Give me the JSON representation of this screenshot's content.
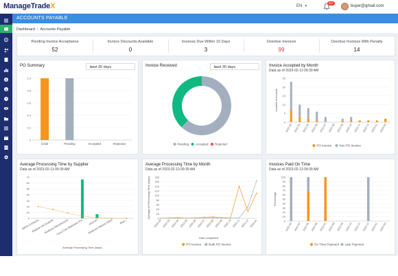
{
  "header": {
    "logo_main": "ManageTrade",
    "logo_x": "X",
    "language": "EN",
    "notifications_badge": "99+",
    "user_email": "buyer@gmail.com"
  },
  "page": {
    "title": "ACCOUNTS PAYABLE",
    "breadcrumb": [
      "Dashboard",
      "Accounts Payable"
    ]
  },
  "kpis": [
    {
      "label": "Pending Invoice Acceptance",
      "value": "52"
    },
    {
      "label": "Invoice Discounts Available",
      "value": "0"
    },
    {
      "label": "Invoices Due Within 10 Days",
      "value": "3"
    },
    {
      "label": "Overdue Invoices",
      "value": "99"
    },
    {
      "label": "Overdue Invoices With Penalty",
      "value": "14"
    }
  ],
  "colors": {
    "orange": "#f7941d",
    "gray": "#a3afbf",
    "green": "#10b981",
    "red": "#ef4444",
    "accent": "#3b8de0",
    "sidebar": "#1d2e70"
  },
  "cards": {
    "po_summary": {
      "title": "PO Summary",
      "dropdown": "Last 30 days"
    },
    "invoice_received": {
      "title": "Invoice Received",
      "dropdown": "Last 30 days"
    },
    "invoice_accepted": {
      "title": "Invoice Accepted by Month",
      "subtitle": "Data as of 2023-02-13 09:39 AM"
    },
    "avg_supplier": {
      "title": "Average Processing Time by Supplier",
      "subtitle": "Data as of 2023-02-13 09:39 AM"
    },
    "avg_month": {
      "title": "Average Processing Time by Month",
      "subtitle": "Data as of 2023-02-13 09:39 AM"
    },
    "paid_on_time": {
      "title": "Invoices Paid On Time",
      "subtitle": "Data as of 2023-02-13 09:39 AM"
    }
  },
  "chart_data": [
    {
      "id": "po_summary",
      "type": "bar",
      "categories": [
        "Draft",
        "Pending",
        "Accepted",
        "Rejected"
      ],
      "values": [
        1.0,
        1.0,
        0,
        0
      ],
      "colors": [
        "#f7941d",
        "#a3afbf",
        "#a3afbf",
        "#a3afbf"
      ],
      "ylim": [
        0,
        1.0
      ],
      "yticks": [
        "0",
        "0.2",
        "0.4",
        "0.6",
        "0.8",
        "1.0"
      ],
      "grid": true
    },
    {
      "id": "invoice_received",
      "type": "pie",
      "donut": true,
      "series": [
        {
          "name": "Pending",
          "value": 62,
          "color": "#a3afbf"
        },
        {
          "name": "Accepted",
          "value": 38,
          "color": "#10b981"
        },
        {
          "name": "Rejected",
          "value": 0,
          "color": "#ef4444"
        }
      ],
      "legend_placement": "bottom"
    },
    {
      "id": "invoice_accepted",
      "type": "bar",
      "stacked": true,
      "ylabel": "Number of records",
      "ylim": [
        0,
        25
      ],
      "yticks": [
        "0",
        "5",
        "10",
        "15",
        "20",
        "25"
      ],
      "categories": [
        "2022-03",
        "2022-04",
        "2022-05",
        "2022-06",
        "2022-07",
        "2022-08",
        "2022-09",
        "2022-10",
        "2022-11",
        "2022-12",
        "2023-01",
        "2023-02"
      ],
      "series": [
        {
          "name": "PO Invoice",
          "color": "#f7941d",
          "values": [
            7,
            3,
            2,
            1,
            0,
            0,
            1,
            1,
            1,
            1,
            1,
            2
          ]
        },
        {
          "name": "Non PO Invoice",
          "color": "#a3afbf",
          "values": [
            16,
            7,
            6,
            5,
            3,
            0,
            1,
            2,
            0,
            0,
            0,
            0
          ]
        }
      ],
      "legend_placement": "bottom"
    },
    {
      "id": "avg_supplier",
      "type": "bar",
      "xlabel": "Average Processing Time (days)",
      "ylim": [
        0,
        70
      ],
      "yticks": [
        "0",
        "10",
        "20",
        "30",
        "40",
        "50",
        "60",
        "70"
      ],
      "categories": [
        "ABCD Company",
        "Radiant Life Supplier",
        "Medicare Manufacturer",
        "Coca Cola Stationery Pvt.",
        "abcd-01",
        "Medicare Natural Sales",
        "Alian..."
      ],
      "values": [
        0,
        0,
        0,
        66,
        7,
        0,
        0
      ],
      "line_values": [
        20,
        15,
        9,
        4,
        1,
        0,
        0
      ],
      "bar_color": "#10b981",
      "line_color": "#f7941d"
    },
    {
      "id": "avg_month",
      "type": "line",
      "xlabel": "Date completed",
      "ylabel": "Average of Processing Time (days)",
      "ylim": [
        0,
        180
      ],
      "yticks": [
        "0",
        "20",
        "40",
        "60",
        "80",
        "100",
        "120",
        "140",
        "160",
        "180"
      ],
      "categories": [
        "2022-02",
        "2022-03",
        "2022-04",
        "2022-05",
        "2022-06",
        "2022-07",
        "2022-08",
        "2022-09",
        "2022-10",
        "2022-11",
        "2022-12",
        "2023-01"
      ],
      "series": [
        {
          "name": "PO Invoice",
          "color": "#f7941d",
          "values": [
            0,
            2,
            3,
            1,
            2,
            5,
            6,
            3,
            2,
            140,
            30,
            110
          ]
        },
        {
          "name": "Both PO Invoice",
          "color": "#a3afbf",
          "values": [
            0,
            1,
            1,
            1,
            1,
            2,
            2,
            1,
            1,
            2,
            50,
            165
          ]
        }
      ],
      "legend_placement": "bottom"
    },
    {
      "id": "paid_on_time",
      "type": "bar",
      "stacked": true,
      "ylabel": "Percentage",
      "ylim": [
        0,
        100
      ],
      "yticks": [
        "0",
        "10",
        "20",
        "30",
        "40",
        "50",
        "60",
        "70",
        "80",
        "90",
        "100"
      ],
      "categories": [
        "2022-03",
        "2022-04",
        "2022-05",
        "2022-06",
        "2022-07",
        "2022-08",
        "2022-09",
        "2022-10",
        "2022-11",
        "2022-12",
        "2023-01",
        "2023-02"
      ],
      "series": [
        {
          "name": "On Time Payment",
          "color": "#f7941d",
          "values": [
            0,
            0,
            68,
            0,
            100,
            0,
            0,
            0,
            0,
            0,
            0,
            0
          ]
        },
        {
          "name": "Late Payment",
          "color": "#a3afbf",
          "values": [
            100,
            0,
            32,
            0,
            0,
            0,
            0,
            0,
            0,
            100,
            0,
            0
          ]
        }
      ],
      "legend_placement": "bottom"
    }
  ]
}
